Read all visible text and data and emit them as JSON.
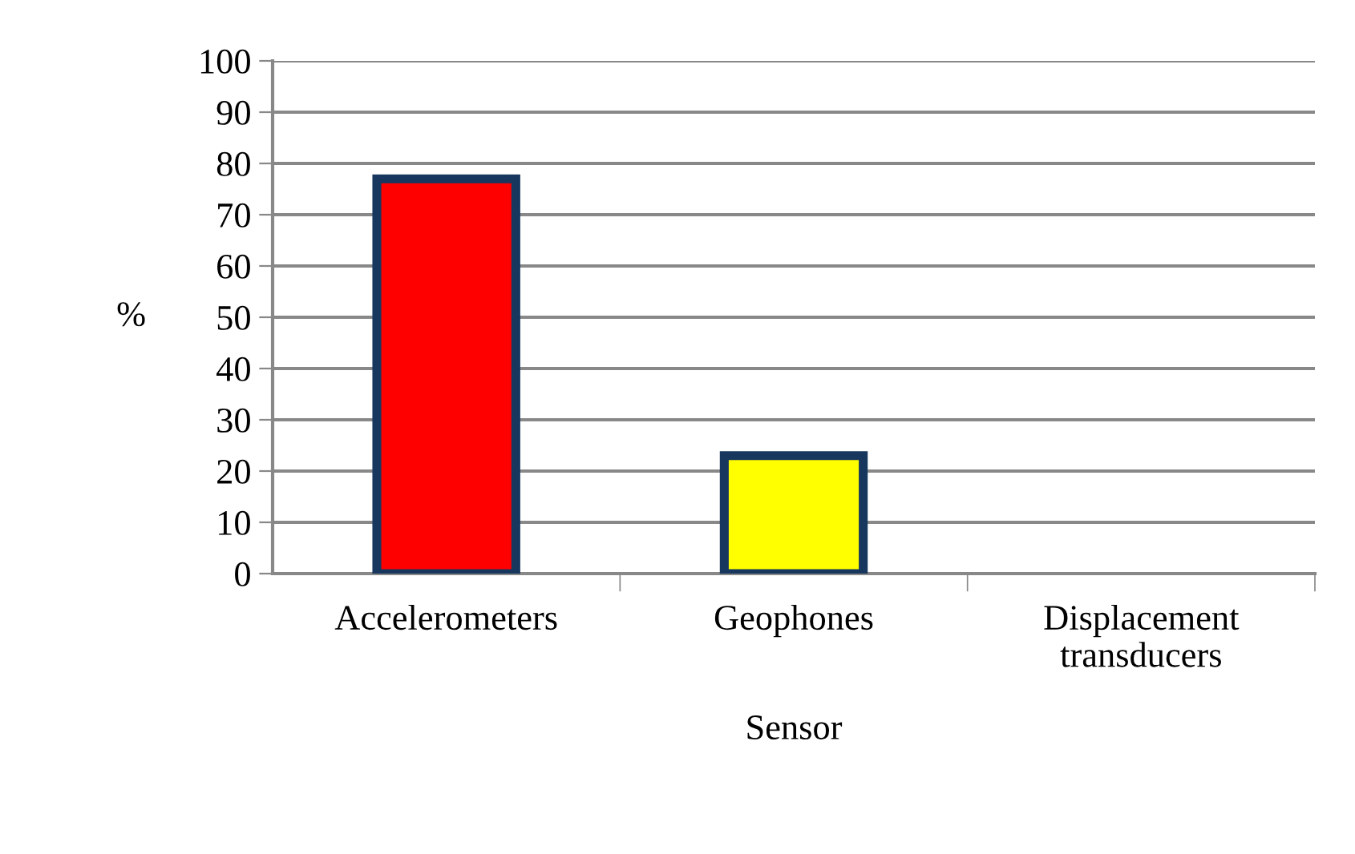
{
  "chart_data": {
    "type": "bar",
    "xlabel": "Sensor",
    "ylabel": "%",
    "categories": [
      "Accelerometers",
      "Geophones",
      "Displacement\ntransducers"
    ],
    "values": [
      77,
      23,
      0
    ],
    "colors": [
      "#ff0000",
      "#ffff00",
      "#ffff00"
    ],
    "ylim": [
      0,
      100
    ],
    "yticks": [
      0,
      10,
      20,
      30,
      40,
      50,
      60,
      70,
      80,
      90,
      100
    ],
    "grid": "y"
  }
}
